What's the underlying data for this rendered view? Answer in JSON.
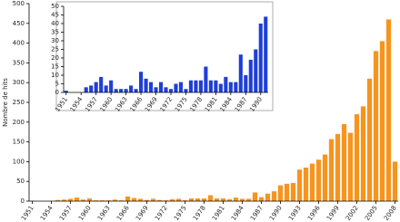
{
  "chart_data": [
    {
      "type": "bar",
      "y_label": "Nombre de hits",
      "color": "#f7941d",
      "x": [
        1951,
        1952,
        1953,
        1954,
        1955,
        1956,
        1957,
        1958,
        1959,
        1960,
        1961,
        1962,
        1963,
        1964,
        1965,
        1966,
        1967,
        1968,
        1969,
        1970,
        1971,
        1972,
        1973,
        1974,
        1975,
        1976,
        1977,
        1978,
        1979,
        1980,
        1981,
        1982,
        1983,
        1984,
        1985,
        1986,
        1987,
        1988,
        1989,
        1990,
        1991,
        1992,
        1993,
        1994,
        1995,
        1996,
        1997,
        1998,
        1999,
        2000,
        2001,
        2002,
        2003,
        2004,
        2005,
        2006,
        2007,
        2008
      ],
      "values": [
        1,
        0,
        0,
        0,
        3,
        4,
        6,
        9,
        4,
        7,
        2,
        2,
        2,
        4,
        2,
        12,
        8,
        6,
        3,
        6,
        3,
        2,
        5,
        6,
        2,
        7,
        7,
        7,
        15,
        7,
        7,
        5,
        9,
        6,
        6,
        22,
        10,
        19,
        25,
        40,
        44,
        46,
        80,
        85,
        95,
        105,
        118,
        157,
        170,
        195,
        173,
        220,
        240,
        310,
        380,
        405,
        460,
        100
      ],
      "xlim": [
        1950.5,
        2008.5
      ],
      "xticks": [
        1951,
        1954,
        1957,
        1960,
        1963,
        1966,
        1969,
        1972,
        1975,
        1978,
        1981,
        1984,
        1987,
        1990,
        1993,
        1996,
        1999,
        2002,
        2005,
        2008
      ],
      "ylim": [
        0,
        500
      ],
      "yticks": [
        0,
        50,
        100,
        150,
        200,
        250,
        300,
        350,
        400,
        450,
        500
      ]
    },
    {
      "type": "bar",
      "color": "#1f3fd6",
      "x": [
        1951,
        1952,
        1953,
        1954,
        1955,
        1956,
        1957,
        1958,
        1959,
        1960,
        1961,
        1962,
        1963,
        1964,
        1965,
        1966,
        1967,
        1968,
        1969,
        1970,
        1971,
        1972,
        1973,
        1974,
        1975,
        1976,
        1977,
        1978,
        1979,
        1980,
        1981,
        1982,
        1983,
        1984,
        1985,
        1986,
        1987,
        1988,
        1989,
        1990,
        1991
      ],
      "values": [
        1,
        0,
        0,
        0,
        3,
        4,
        6,
        9,
        4,
        7,
        2,
        2,
        2,
        4,
        2,
        12,
        8,
        6,
        3,
        6,
        3,
        2,
        5,
        6,
        2,
        7,
        7,
        7,
        15,
        7,
        7,
        5,
        9,
        6,
        6,
        22,
        10,
        19,
        25,
        40,
        44
      ],
      "xlim": [
        1950.5,
        1991.5
      ],
      "xticks": [
        1951,
        1954,
        1957,
        1960,
        1963,
        1966,
        1969,
        1972,
        1975,
        1978,
        1981,
        1984,
        1987,
        1990
      ],
      "ylim": [
        0,
        50
      ],
      "yticks": [
        0,
        5,
        10,
        15,
        20,
        25,
        30,
        35,
        40,
        45,
        50
      ]
    }
  ]
}
